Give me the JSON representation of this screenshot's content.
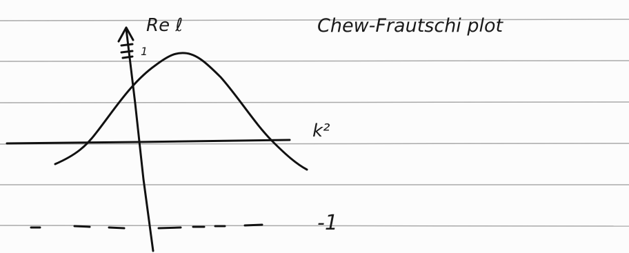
{
  "title": "Chew-Frautschi plot",
  "axes": {
    "y_label": "Re ℓ",
    "x_label": "k²"
  },
  "marks": {
    "top": "1",
    "bottom": "-1"
  }
}
